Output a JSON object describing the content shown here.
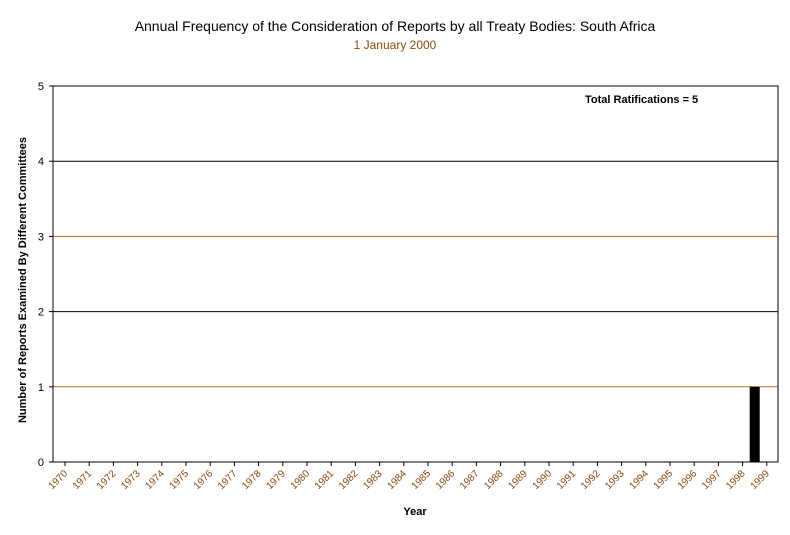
{
  "chart_data": {
    "type": "bar",
    "title": "Annual Frequency of the Consideration of Reports by all Treaty Bodies: South Africa",
    "subtitle": "1 January 2000",
    "xlabel": "Year",
    "ylabel": "Number of Reports Examined By Different Committees",
    "ylim": [
      0,
      5
    ],
    "yticks": [
      0,
      1,
      2,
      3,
      4,
      5
    ],
    "annotation": "Total Ratifications = 5",
    "categories": [
      "1970",
      "1971",
      "1972",
      "1973",
      "1974",
      "1975",
      "1976",
      "1977",
      "1978",
      "1979",
      "1980",
      "1981",
      "1982",
      "1983",
      "1984",
      "1985",
      "1986",
      "1987",
      "1988",
      "1989",
      "1990",
      "1991",
      "1992",
      "1993",
      "1994",
      "1995",
      "1996",
      "1997",
      "1998",
      "1999"
    ],
    "values": [
      0,
      0,
      0,
      0,
      0,
      0,
      0,
      0,
      0,
      0,
      0,
      0,
      0,
      0,
      0,
      0,
      0,
      0,
      0,
      0,
      0,
      0,
      0,
      0,
      0,
      0,
      0,
      0,
      1,
      0
    ],
    "grid": true,
    "colors": {
      "bar": "#000000",
      "gridline": "#c07020",
      "tick_label": "#8a4a0f"
    }
  }
}
